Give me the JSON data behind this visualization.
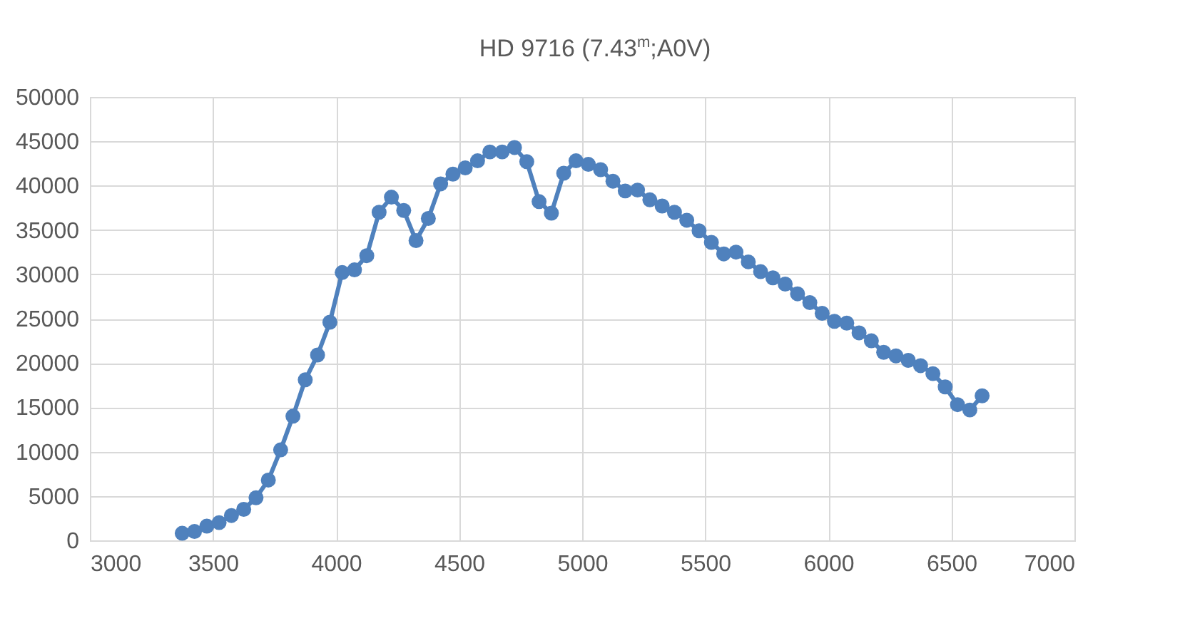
{
  "chart_data": {
    "type": "line",
    "title": "HD 9716 (7.43$^{m}$;A0V)",
    "x": [
      3375,
      3425,
      3475,
      3525,
      3575,
      3625,
      3675,
      3725,
      3775,
      3825,
      3875,
      3925,
      3975,
      4025,
      4075,
      4125,
      4175,
      4225,
      4275,
      4325,
      4375,
      4425,
      4475,
      4525,
      4575,
      4625,
      4675,
      4725,
      4775,
      4825,
      4875,
      4925,
      4975,
      5025,
      5075,
      5125,
      5175,
      5225,
      5275,
      5325,
      5375,
      5425,
      5475,
      5525,
      5575,
      5625,
      5675,
      5725,
      5775,
      5825,
      5875,
      5925,
      5975,
      6025,
      6075,
      6125,
      6175,
      6225,
      6275,
      6325,
      6375,
      6425,
      6475,
      6525,
      6575,
      6625
    ],
    "series": [
      {
        "color": "#4f81bd",
        "values": [
          800,
          1000,
          1600,
          2000,
          2800,
          3500,
          4800,
          6800,
          10200,
          14000,
          18100,
          20900,
          24600,
          30200,
          30500,
          32100,
          37000,
          38700,
          37200,
          33800,
          36300,
          40200,
          41300,
          42000,
          42800,
          43800,
          43800,
          44300,
          42700,
          38200,
          36900,
          41400,
          42800,
          42400,
          41800,
          40500,
          39400,
          39500,
          38400,
          37700,
          37000,
          36100,
          34900,
          33600,
          32300,
          32500,
          31400,
          30300,
          29600,
          28900,
          27800,
          26800,
          25600,
          24700,
          24500,
          23400,
          22500,
          21200,
          20800,
          20300,
          19700,
          18800,
          17300,
          15300,
          14700,
          16300
        ]
      }
    ],
    "xlim": [
      3000,
      7000
    ],
    "xticks": [
      3000,
      3500,
      4000,
      4500,
      5000,
      5500,
      6000,
      6500,
      7000
    ],
    "ylim": [
      0,
      50000
    ],
    "yticks": [
      0,
      5000,
      10000,
      15000,
      20000,
      25000,
      30000,
      35000,
      40000,
      45000,
      50000
    ],
    "grid": true,
    "marker": "circle",
    "line_style": "solid"
  }
}
